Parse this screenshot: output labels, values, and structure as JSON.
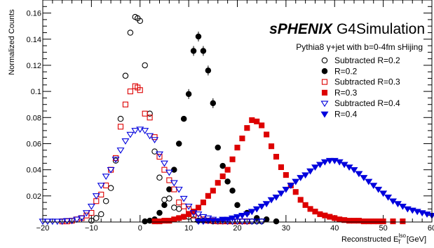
{
  "chart_data": {
    "type": "scatter",
    "title": "sPHENIX G4Simulation",
    "title_bold": "sPHENIX",
    "title_rest": "G4Simulation",
    "subtitle": "Pythia8 γ+jet with b=0-4fm sHijing",
    "xlabel_main": "Reconstructed E",
    "xlabel_sub": "T",
    "xlabel_sup": "Iso",
    "xlabel_unit": "[GeV]",
    "ylabel": "Normalized Counts",
    "xlim": [
      -20,
      60
    ],
    "ylim": [
      0,
      0.17
    ],
    "xticks": [
      -20,
      -10,
      0,
      10,
      20,
      30,
      40,
      50,
      60
    ],
    "xtick_labels": [
      "−20",
      "−10",
      "0",
      "10",
      "20",
      "30",
      "40",
      "50",
      "60"
    ],
    "yticks": [
      0.02,
      0.04,
      0.06,
      0.08,
      0.1,
      0.12,
      0.14,
      0.16
    ],
    "ytick_labels": [
      "0.02",
      "0.04",
      "0.06",
      "0.08",
      "0.1",
      "0.12",
      "0.14",
      "0.16"
    ],
    "grid": false,
    "legend_position": "top-right",
    "series": [
      {
        "name": "Subtracted R=0.2",
        "color": "#000000",
        "marker": "circle-open",
        "x": [
          -10,
          -9,
          -8,
          -7,
          -6,
          -5,
          -4,
          -3,
          -2,
          -1,
          -0.5,
          0,
          1,
          2,
          3,
          4,
          5,
          6,
          7,
          8,
          9,
          10,
          11,
          12,
          13,
          14,
          15,
          16,
          17,
          18,
          19,
          20,
          21,
          22,
          23,
          24,
          25
        ],
        "y": [
          0.001,
          0.003,
          0.006,
          0.016,
          0.026,
          0.047,
          0.079,
          0.112,
          0.145,
          0.157,
          0.156,
          0.154,
          0.12,
          0.083,
          0.054,
          0.034,
          0.017,
          0.018,
          0.011,
          0.01,
          0.004,
          0.004,
          0.002,
          0.001,
          0.001,
          0.001,
          0.0005,
          0.0005,
          0.0005,
          0.0005,
          0.0005,
          0.0005,
          0.0005,
          0.0005,
          0.0005,
          0.0005,
          0.0005
        ]
      },
      {
        "name": "R=0.2",
        "color": "#000000",
        "marker": "circle-filled",
        "x": [
          1,
          2,
          3,
          4,
          5,
          6,
          7,
          8,
          9,
          10,
          11,
          12,
          13,
          14,
          15,
          16,
          17,
          18,
          19,
          20,
          22,
          24,
          26,
          28
        ],
        "y": [
          0.0005,
          0.001,
          0.002,
          0.007,
          0.013,
          0.025,
          0.04,
          0.06,
          0.079,
          0.098,
          0.131,
          0.142,
          0.131,
          0.116,
          0.091,
          0.057,
          0.043,
          0.031,
          0.024,
          0.013,
          0.007,
          0.003,
          0.002,
          0.0005
        ]
      },
      {
        "name": "Subtracted R=0.3",
        "color": "#dd0000",
        "marker": "square-open",
        "x": [
          -16,
          -15,
          -14,
          -13,
          -12,
          -11,
          -10,
          -9,
          -8,
          -7,
          -6,
          -5,
          -4,
          -3,
          -2,
          -1,
          -0.5,
          0,
          1,
          2,
          3,
          4,
          5,
          6,
          7,
          8,
          9,
          10,
          11,
          12,
          13,
          14,
          15,
          16,
          17,
          18,
          19,
          20,
          21,
          22
        ],
        "y": [
          0.0005,
          0.0005,
          0.001,
          0.002,
          0.003,
          0.005,
          0.007,
          0.016,
          0.021,
          0.028,
          0.04,
          0.049,
          0.073,
          0.09,
          0.1,
          0.104,
          0.103,
          0.101,
          0.083,
          0.08,
          0.065,
          0.05,
          0.04,
          0.032,
          0.025,
          0.015,
          0.012,
          0.01,
          0.005,
          0.003,
          0.002,
          0.001,
          0.001,
          0.0005,
          0.0005,
          0.0005,
          0.0005,
          0.0005,
          0.0005,
          0.0005
        ]
      },
      {
        "name": "R=0.3",
        "color": "#dd0000",
        "marker": "square-filled",
        "x": [
          3,
          4,
          5,
          6,
          7,
          8,
          9,
          10,
          11,
          12,
          13,
          14,
          15,
          16,
          17,
          18,
          19,
          20,
          21,
          22,
          23,
          24,
          25,
          26,
          27,
          28,
          29,
          30,
          31,
          32,
          33,
          34,
          35,
          36,
          37,
          38,
          39,
          40,
          41,
          42,
          43,
          44,
          45,
          46,
          47,
          48,
          49,
          50,
          52,
          54
        ],
        "y": [
          0.0005,
          0.0005,
          0.001,
          0.001,
          0.002,
          0.003,
          0.004,
          0.006,
          0.008,
          0.011,
          0.015,
          0.02,
          0.024,
          0.03,
          0.035,
          0.04,
          0.048,
          0.057,
          0.064,
          0.072,
          0.078,
          0.077,
          0.074,
          0.067,
          0.058,
          0.05,
          0.042,
          0.036,
          0.028,
          0.023,
          0.017,
          0.013,
          0.01,
          0.008,
          0.006,
          0.005,
          0.004,
          0.003,
          0.002,
          0.0015,
          0.001,
          0.001,
          0.001,
          0.0005,
          0.0005,
          0.0005,
          0.0005,
          0.0005,
          0.0005,
          0.0005
        ]
      },
      {
        "name": "Subtracted R=0.4",
        "color": "#0000dd",
        "marker": "triangle-down-open",
        "x": [
          -20,
          -19,
          -18,
          -17,
          -16,
          -15,
          -14,
          -13,
          -12,
          -11,
          -10,
          -9,
          -8,
          -7,
          -6,
          -5,
          -4,
          -3,
          -2,
          -1,
          0,
          1,
          2,
          3,
          4,
          5,
          6,
          7,
          8,
          9,
          10,
          11,
          12,
          13,
          14,
          15,
          16,
          17,
          18,
          19,
          20,
          21,
          22,
          23,
          24,
          25
        ],
        "y": [
          0.0005,
          0.0005,
          0.0005,
          0.0005,
          0.0005,
          0.001,
          0.001,
          0.002,
          0.003,
          0.007,
          0.012,
          0.02,
          0.028,
          0.035,
          0.04,
          0.048,
          0.055,
          0.062,
          0.067,
          0.07,
          0.071,
          0.07,
          0.066,
          0.063,
          0.052,
          0.045,
          0.038,
          0.03,
          0.025,
          0.018,
          0.012,
          0.007,
          0.006,
          0.004,
          0.003,
          0.002,
          0.001,
          0.001,
          0.0005,
          0.0005,
          0.0005,
          0.0005,
          0.0005,
          0.0005,
          0.0005,
          0.0005
        ]
      },
      {
        "name": "R=0.4",
        "color": "#0000dd",
        "marker": "triangle-down-filled",
        "x": [
          12,
          13,
          14,
          15,
          16,
          17,
          18,
          19,
          20,
          21,
          22,
          23,
          24,
          25,
          26,
          27,
          28,
          29,
          30,
          31,
          32,
          33,
          34,
          35,
          36,
          37,
          38,
          39,
          40,
          41,
          42,
          43,
          44,
          45,
          46,
          47,
          48,
          49,
          50,
          51,
          52,
          53,
          54,
          55,
          56,
          57,
          58,
          59,
          60
        ],
        "y": [
          0.0005,
          0.0005,
          0.001,
          0.001,
          0.001,
          0.002,
          0.002,
          0.003,
          0.004,
          0.005,
          0.006,
          0.008,
          0.01,
          0.012,
          0.014,
          0.017,
          0.019,
          0.022,
          0.025,
          0.028,
          0.031,
          0.034,
          0.036,
          0.039,
          0.042,
          0.044,
          0.046,
          0.047,
          0.047,
          0.046,
          0.044,
          0.042,
          0.04,
          0.037,
          0.034,
          0.031,
          0.028,
          0.025,
          0.022,
          0.019,
          0.016,
          0.014,
          0.012,
          0.01,
          0.009,
          0.008,
          0.007,
          0.006,
          0.005
        ]
      }
    ]
  }
}
